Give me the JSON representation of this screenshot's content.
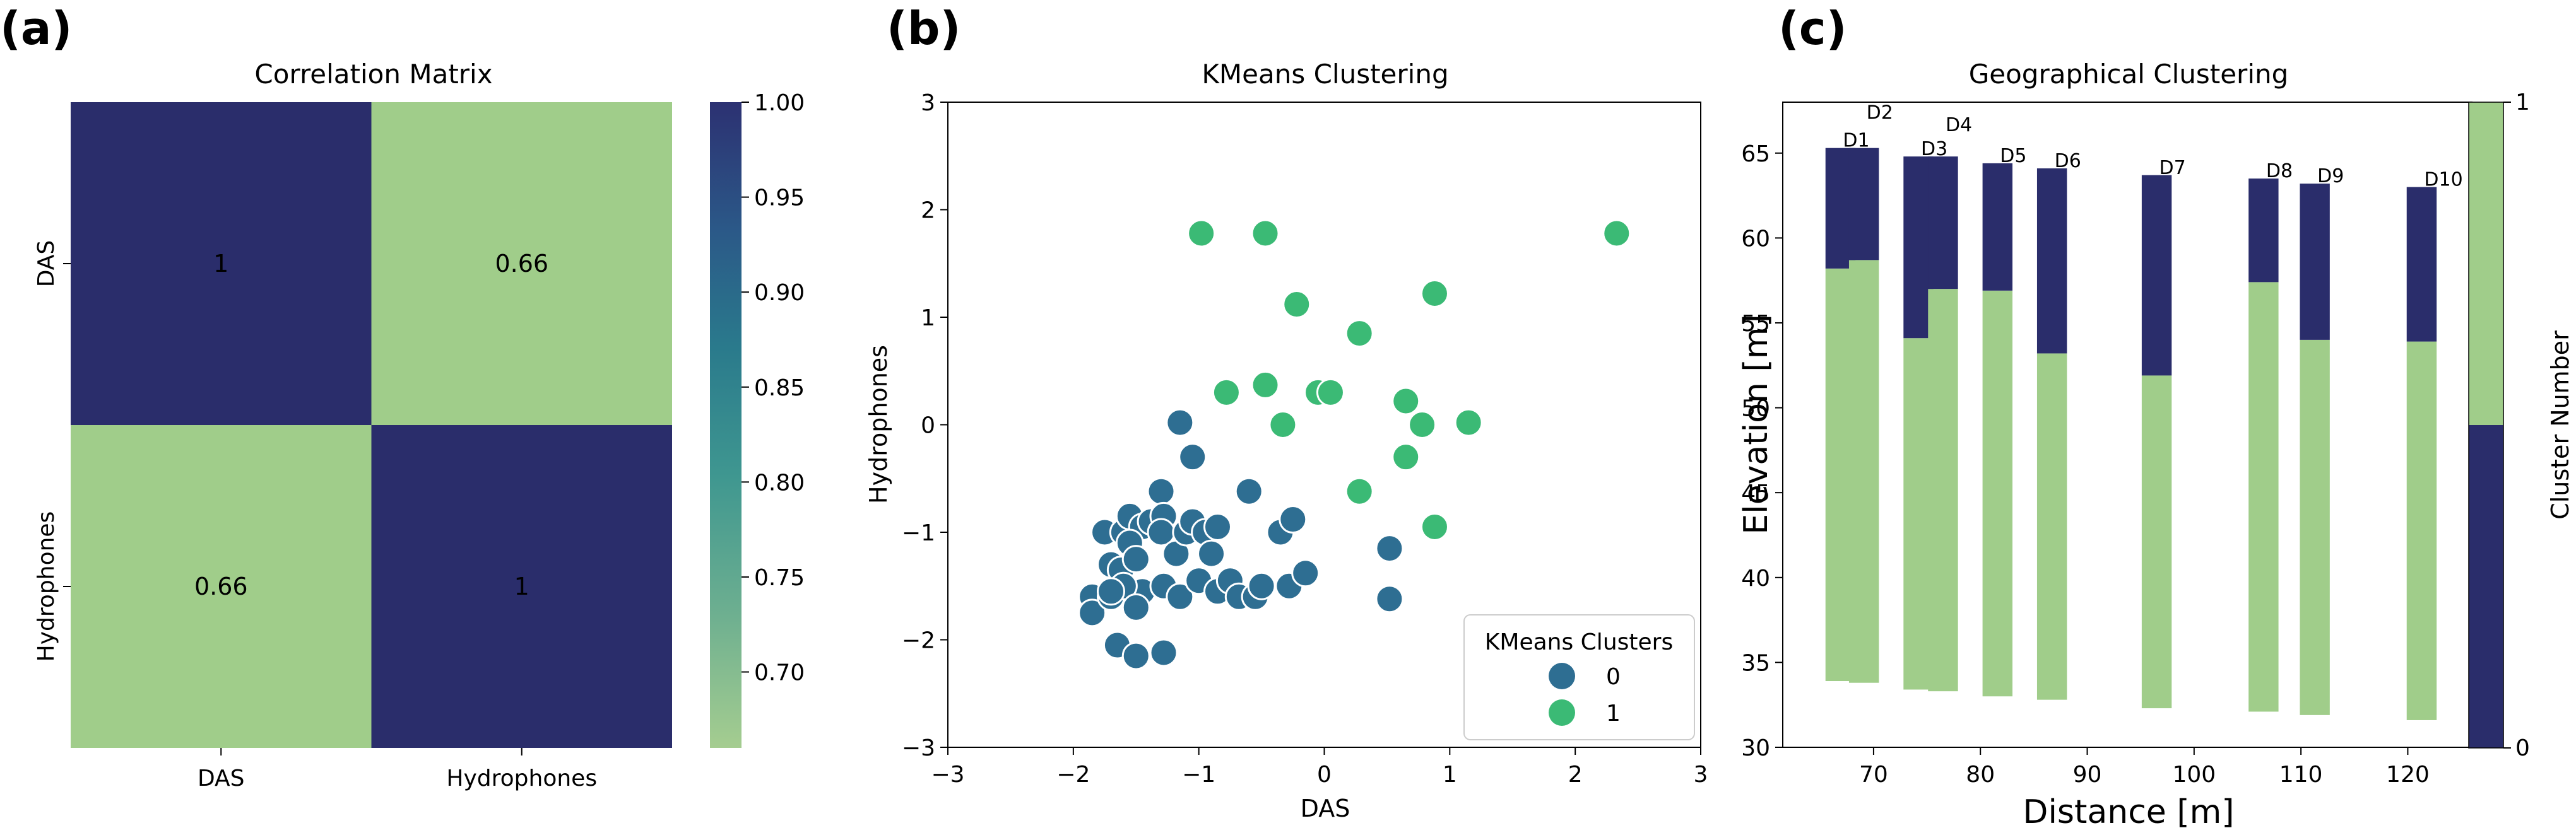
{
  "panels": {
    "a": {
      "letter": "(a)"
    },
    "b": {
      "letter": "(b)"
    },
    "c": {
      "letter": "(c)"
    }
  },
  "colors": {
    "navy": "#2a2d6b",
    "light_green": "#a0cd8a",
    "teal_blue": "#2e6e92",
    "green": "#3bba75"
  },
  "chart_data": [
    {
      "type": "heatmap",
      "title": "Correlation Matrix",
      "row_labels": [
        "DAS",
        "Hydrophones"
      ],
      "col_labels": [
        "DAS",
        "Hydrophones"
      ],
      "values": [
        [
          1,
          0.66
        ],
        [
          0.66,
          1
        ]
      ],
      "annotations": [
        [
          "1",
          "0.66"
        ],
        [
          "0.66",
          "1"
        ]
      ],
      "colorbar": {
        "range": [
          0.66,
          1.0
        ],
        "ticks": [
          0.7,
          0.75,
          0.8,
          0.85,
          0.9,
          0.95,
          1.0
        ],
        "tick_labels": [
          "0.70",
          "0.75",
          "0.80",
          "0.85",
          "0.90",
          "0.95",
          "1.00"
        ],
        "colormap": "crest"
      }
    },
    {
      "type": "scatter",
      "title": "KMeans Clustering",
      "xlabel": "DAS",
      "ylabel": "Hydrophones",
      "xlim": [
        -3,
        3
      ],
      "ylim": [
        -3,
        3
      ],
      "xticks": [
        -3,
        -2,
        -1,
        0,
        1,
        2,
        3
      ],
      "xtick_labels": [
        "−3",
        "−2",
        "−1",
        "0",
        "1",
        "2",
        "3"
      ],
      "yticks": [
        -3,
        -2,
        -1,
        0,
        1,
        2,
        3
      ],
      "ytick_labels": [
        "−3",
        "−2",
        "−1",
        "0",
        "1",
        "2",
        "3"
      ],
      "legend": {
        "title": "KMeans Clusters",
        "entries": [
          "0",
          "1"
        ],
        "location": "lower-right"
      },
      "series": [
        {
          "name": "0",
          "points": [
            [
              -1.15,
              0.02
            ],
            [
              -1.05,
              -0.3
            ],
            [
              -1.3,
              -0.62
            ],
            [
              -0.6,
              -0.62
            ],
            [
              -1.85,
              -1.6
            ],
            [
              -1.85,
              -1.75
            ],
            [
              -1.7,
              -1.6
            ],
            [
              -1.65,
              -2.05
            ],
            [
              -1.5,
              -2.15
            ],
            [
              -1.28,
              -2.12
            ],
            [
              -1.75,
              -1.0
            ],
            [
              -1.6,
              -1.0
            ],
            [
              -1.55,
              -0.85
            ],
            [
              -1.45,
              -0.95
            ],
            [
              -1.38,
              -0.9
            ],
            [
              -1.28,
              -0.85
            ],
            [
              -1.7,
              -1.3
            ],
            [
              -1.62,
              -1.35
            ],
            [
              -1.55,
              -1.1
            ],
            [
              -1.5,
              -1.25
            ],
            [
              -1.45,
              -1.55
            ],
            [
              -1.6,
              -1.5
            ],
            [
              -1.7,
              -1.55
            ],
            [
              -1.5,
              -1.7
            ],
            [
              -1.3,
              -1.0
            ],
            [
              -1.18,
              -1.2
            ],
            [
              -1.1,
              -1.0
            ],
            [
              -1.05,
              -0.9
            ],
            [
              -0.95,
              -1.0
            ],
            [
              -0.85,
              -0.95
            ],
            [
              -1.28,
              -1.5
            ],
            [
              -1.15,
              -1.6
            ],
            [
              -1.0,
              -1.45
            ],
            [
              -0.9,
              -1.2
            ],
            [
              -0.85,
              -1.55
            ],
            [
              -0.75,
              -1.45
            ],
            [
              -0.68,
              -1.6
            ],
            [
              -0.55,
              -1.6
            ],
            [
              -0.5,
              -1.5
            ],
            [
              -0.35,
              -1.0
            ],
            [
              -0.28,
              -1.5
            ],
            [
              -0.25,
              -0.88
            ],
            [
              -0.15,
              -1.38
            ],
            [
              0.52,
              -1.15
            ],
            [
              0.52,
              -1.62
            ]
          ]
        },
        {
          "name": "1",
          "points": [
            [
              -0.98,
              1.78
            ],
            [
              -0.47,
              1.78
            ],
            [
              2.33,
              1.78
            ],
            [
              -0.22,
              1.12
            ],
            [
              0.88,
              1.22
            ],
            [
              0.28,
              0.85
            ],
            [
              -0.78,
              0.3
            ],
            [
              -0.47,
              0.37
            ],
            [
              -0.05,
              0.3
            ],
            [
              0.05,
              0.3
            ],
            [
              0.65,
              0.22
            ],
            [
              -0.33,
              0.0
            ],
            [
              0.78,
              0.0
            ],
            [
              1.15,
              0.02
            ],
            [
              0.65,
              -0.3
            ],
            [
              0.28,
              -0.62
            ],
            [
              0.88,
              -0.95
            ]
          ]
        }
      ]
    },
    {
      "type": "bar",
      "subtype": "stacked-boreholes",
      "title": "Geographical Clustering",
      "xlabel": "Distance [m]",
      "ylabel": "Elevation [m]",
      "xlim": [
        61.5,
        126
      ],
      "ylim": [
        30,
        68
      ],
      "xticks": [
        70,
        80,
        90,
        100,
        110,
        120
      ],
      "xtick_labels": [
        "70",
        "80",
        "90",
        "100",
        "110",
        "120"
      ],
      "yticks": [
        30,
        35,
        40,
        45,
        50,
        55,
        60,
        65
      ],
      "ytick_labels": [
        "30",
        "35",
        "40",
        "45",
        "50",
        "55",
        "60",
        "65"
      ],
      "bar_width_m": 2.8,
      "boreholes": [
        {
          "name": "D1",
          "x": 66.9,
          "top": 65.3,
          "transition": 58.2,
          "bottom": 33.9
        },
        {
          "name": "D2",
          "x": 69.1,
          "top": 65.3,
          "transition": 58.7,
          "bottom": 33.8
        },
        {
          "name": "D3",
          "x": 74.2,
          "top": 64.8,
          "transition": 54.1,
          "bottom": 33.4
        },
        {
          "name": "D4",
          "x": 76.5,
          "top": 64.8,
          "transition": 57.0,
          "bottom": 33.3
        },
        {
          "name": "D5",
          "x": 81.6,
          "top": 64.4,
          "transition": 56.9,
          "bottom": 33.0
        },
        {
          "name": "D6",
          "x": 86.7,
          "top": 64.1,
          "transition": 53.2,
          "bottom": 32.8
        },
        {
          "name": "D7",
          "x": 96.5,
          "top": 63.7,
          "transition": 51.9,
          "bottom": 32.3
        },
        {
          "name": "D8",
          "x": 106.5,
          "top": 63.5,
          "transition": 57.4,
          "bottom": 32.1
        },
        {
          "name": "D9",
          "x": 111.3,
          "top": 63.2,
          "transition": 54.0,
          "bottom": 31.9
        },
        {
          "name": "D10",
          "x": 121.3,
          "top": 63.0,
          "transition": 53.9,
          "bottom": 31.6
        }
      ],
      "colorbar": {
        "label": "Cluster Number",
        "ticks": [
          "0",
          "1"
        ],
        "colors": [
          "#2a2d6b",
          "#a0cd8a"
        ]
      }
    }
  ]
}
